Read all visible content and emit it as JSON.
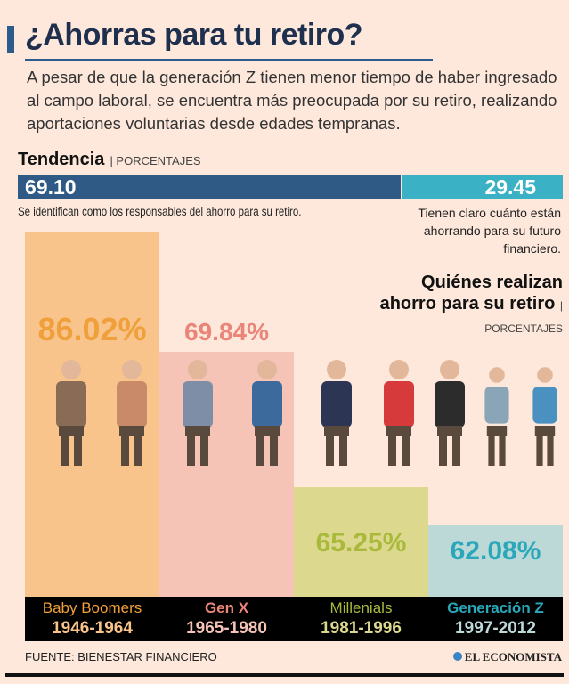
{
  "header": {
    "title": "¿Ahorras para tu retiro?",
    "intro": "A pesar de que la generación Z tienen menor tiempo de haber ingresado al campo laboral, se encuentra más preocupada por su retiro, realizando aportaciones voluntarias desde edades tempranas."
  },
  "trend": {
    "title": "Tendencia",
    "subtitle": "| PORCENTAJES",
    "value_a": "69.10",
    "caption_a": "Se identifican como los responsables del ahorro para su retiro.",
    "value_b": "29.45",
    "caption_b": "Tienen claro cuánto están ahorrando para su futuro financiero."
  },
  "who": {
    "title": "Quiénes realizan ahorro para su retiro",
    "subtitle": "| PORCENTAJES"
  },
  "chart_data": {
    "type": "bar",
    "title": "Quiénes realizan ahorro para su retiro",
    "unit": "%",
    "categories": [
      "Baby Boomers",
      "Gen X",
      "Millenials",
      "Generación Z"
    ],
    "ranges": [
      "1946-1964",
      "1965-1980",
      "1981-1996",
      "1997-2012"
    ],
    "values": [
      86.02,
      69.84,
      65.25,
      62.08
    ],
    "colors": {
      "bars": [
        "#f9c48b",
        "#f6c3b7",
        "#dcd98f",
        "#bcd9d8"
      ],
      "labels": [
        "#f0a03a",
        "#ea8579",
        "#a9b93c",
        "#2aa8ba"
      ]
    }
  },
  "footer": {
    "source": "FUENTE: BIENESTAR FINANCIERO",
    "brand": "EL ECONOMISTA"
  }
}
